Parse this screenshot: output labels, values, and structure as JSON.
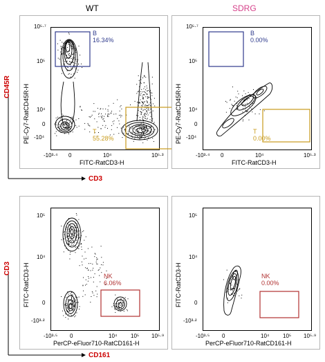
{
  "headers": {
    "left": "WT",
    "right": "SDRG"
  },
  "colors": {
    "header_right": "#d6408a",
    "gate_b": "#2e3a8c",
    "gate_t": "#c89a1a",
    "gate_nk": "#b03030",
    "arrow_label": "#cc0000"
  },
  "top_row": {
    "x_axis_title": "FITC-RatCD3-H",
    "y_axis_title": "PE-Cy7-RatCD45R-H",
    "x_ticks": [
      "-10³·⁴",
      "0",
      "10⁴",
      "10⁵·³"
    ],
    "y_ticks": [
      "10⁵·⁷",
      "10⁵",
      "10⁴",
      "0",
      "-10⁴"
    ],
    "wt": {
      "gate_b_name": "B",
      "gate_b_pct": "16.34%",
      "gate_t_name": "T",
      "gate_t_pct": "55.28%"
    },
    "sdrg": {
      "gate_b_name": "B",
      "gate_b_pct": "0.00%",
      "gate_t_name": "T",
      "gate_t_pct": "0.00%"
    }
  },
  "bottom_row": {
    "x_axis_title": "PerCP-eFluor710-RatCD161-H",
    "y_axis_title": "FITC-RatCD3-H",
    "x_ticks": [
      "-10³·⁵",
      "0",
      "10⁴",
      "10⁵",
      "10⁵·⁹"
    ],
    "y_ticks": [
      "10⁵",
      "10⁴",
      "0",
      "-10³·²"
    ],
    "wt": {
      "gate_nk_name": "NK",
      "gate_nk_pct": "6.06%"
    },
    "sdrg": {
      "gate_nk_name": "NK",
      "gate_nk_pct": "0.00%"
    }
  },
  "arrows": {
    "top_vertical": "CD45R",
    "top_horizontal": "CD3",
    "bottom_vertical": "CD3",
    "bottom_horizontal": "CD161"
  },
  "chart_data": [
    {
      "type": "scatter",
      "subtype": "flow-cytometry-contour",
      "panel": "WT top",
      "xlabel": "FITC-RatCD3-H",
      "ylabel": "PE-Cy7-RatCD45R-H",
      "gates": [
        {
          "name": "B",
          "percent": 16.34
        },
        {
          "name": "T",
          "percent": 55.28
        }
      ]
    },
    {
      "type": "scatter",
      "subtype": "flow-cytometry-contour",
      "panel": "SDRG top",
      "xlabel": "FITC-RatCD3-H",
      "ylabel": "PE-Cy7-RatCD45R-H",
      "gates": [
        {
          "name": "B",
          "percent": 0.0
        },
        {
          "name": "T",
          "percent": 0.0
        }
      ]
    },
    {
      "type": "scatter",
      "subtype": "flow-cytometry-contour",
      "panel": "WT bottom",
      "xlabel": "PerCP-eFluor710-RatCD161-H",
      "ylabel": "FITC-RatCD3-H",
      "gates": [
        {
          "name": "NK",
          "percent": 6.06
        }
      ]
    },
    {
      "type": "scatter",
      "subtype": "flow-cytometry-contour",
      "panel": "SDRG bottom",
      "xlabel": "PerCP-eFluor710-RatCD161-H",
      "ylabel": "FITC-RatCD3-H",
      "gates": [
        {
          "name": "NK",
          "percent": 0.0
        }
      ]
    }
  ]
}
